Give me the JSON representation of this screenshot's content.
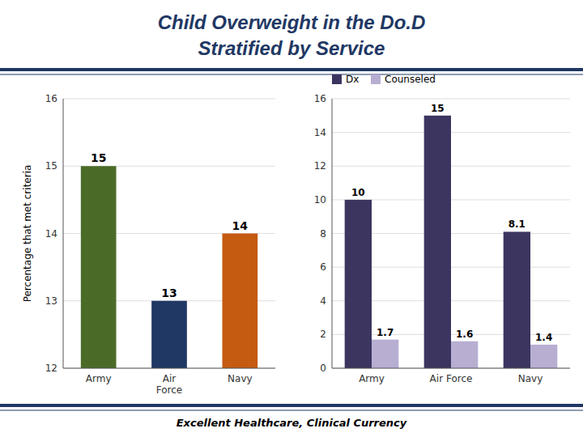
{
  "title": "Child Overweight in the Do.D",
  "subtitle": "Stratified by Service",
  "annotations": [
    "Excellent Healthcare, Clinical Currency"
  ],
  "chart_data": [
    {
      "type": "bar",
      "categories": [
        "Army",
        "Air\nForce",
        "Navy"
      ],
      "values": [
        15,
        13,
        14
      ],
      "colors": [
        "#4a6b28",
        "#1f3864",
        "#c55a11"
      ],
      "ylim": [
        12,
        16
      ],
      "yticks": [
        12,
        13,
        14,
        15,
        16
      ],
      "ylabel": "Percentage that met criteria",
      "grid": true,
      "data_labels": true
    },
    {
      "type": "bar",
      "categories": [
        "Army",
        "Air Force",
        "Navy"
      ],
      "series": [
        {
          "name": "Dx",
          "color": "#3b3560",
          "values": [
            10,
            15,
            8.1
          ]
        },
        {
          "name": "Counseled",
          "color": "#b8aed2",
          "values": [
            1.7,
            1.6,
            1.4
          ]
        }
      ],
      "ylim": [
        0,
        16
      ],
      "yticks": [
        0,
        2,
        4,
        6,
        8,
        10,
        12,
        14,
        16
      ],
      "grid": true,
      "legend": "upper left",
      "data_labels": true
    }
  ]
}
